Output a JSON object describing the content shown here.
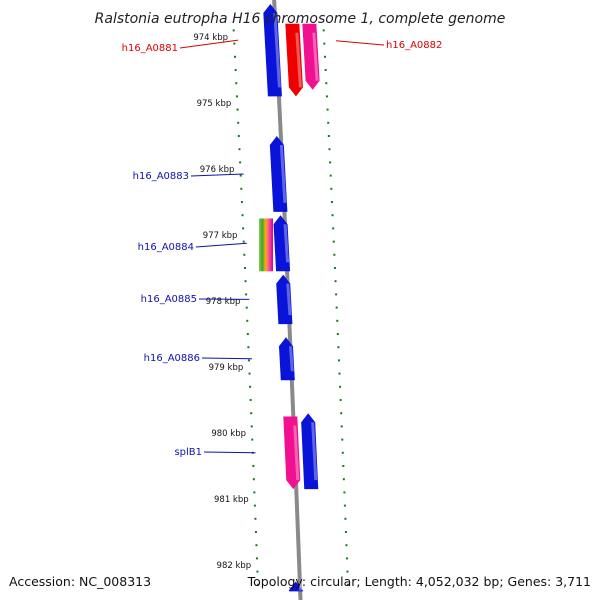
{
  "title": "Ralstonia eutropha H16 chromosome 1, complete genome",
  "footer": {
    "accession": "Accession: NC_008313",
    "stats": "Topology: circular; Length: 4,052,032 bp; Genes: 3,711"
  },
  "colors": {
    "forward_cds": "#0a14d8",
    "reverse_cds": "#f01090",
    "highlight_cds": "#ee0000",
    "backbone": "#8a8a8a",
    "tick": "#1a7a1a",
    "label_blue": "#1010b0",
    "label_red": "#dd0000"
  },
  "ticks": [
    {
      "kbp": 974,
      "label": "974 kbp"
    },
    {
      "kbp": 975,
      "label": "975 kbp"
    },
    {
      "kbp": 976,
      "label": "976 kbp"
    },
    {
      "kbp": 977,
      "label": "977 kbp"
    },
    {
      "kbp": 978,
      "label": "978 kbp"
    },
    {
      "kbp": 979,
      "label": "979 kbp"
    },
    {
      "kbp": 980,
      "label": "980 kbp"
    },
    {
      "kbp": 981,
      "label": "981 kbp"
    },
    {
      "kbp": 982,
      "label": "982 kbp"
    }
  ],
  "genes": [
    {
      "id": "g-prev",
      "start": 973.5,
      "end": 974.9,
      "strand": "forward",
      "color": "forward_cds",
      "label": null
    },
    {
      "id": "h16_A0881",
      "start": 973.8,
      "end": 974.9,
      "strand": "reverse",
      "color": "highlight_cds",
      "label": "h16_A0881"
    },
    {
      "id": "h16_A0882",
      "start": 973.8,
      "end": 974.8,
      "strand": "reverse",
      "color": "reverse_cds",
      "label": "h16_A0882"
    },
    {
      "id": "h16_A0883",
      "start": 975.5,
      "end": 976.65,
      "strand": "forward",
      "color": "forward_cds",
      "label": "h16_A0883"
    },
    {
      "id": "h16_A0884",
      "start": 976.7,
      "end": 977.55,
      "strand": "forward",
      "color": "forward_cds",
      "label": "h16_A0884"
    },
    {
      "id": "h16_A0885",
      "start": 977.6,
      "end": 978.35,
      "strand": "forward",
      "color": "forward_cds",
      "label": "h16_A0885"
    },
    {
      "id": "h16_A0886",
      "start": 978.55,
      "end": 979.2,
      "strand": "forward",
      "color": "forward_cds",
      "label": "h16_A0886"
    },
    {
      "id": "splB1",
      "start": 979.75,
      "end": 980.85,
      "strand": "reverse",
      "color": "reverse_cds",
      "label": "splB1"
    },
    {
      "id": "g-next",
      "start": 979.7,
      "end": 980.85,
      "strand": "forward",
      "color": "forward_cds",
      "label": null
    },
    {
      "id": "g-bottom",
      "start": 982.25,
      "end": 982.4,
      "strand": "forward",
      "color": "forward_cds",
      "label": null
    }
  ]
}
